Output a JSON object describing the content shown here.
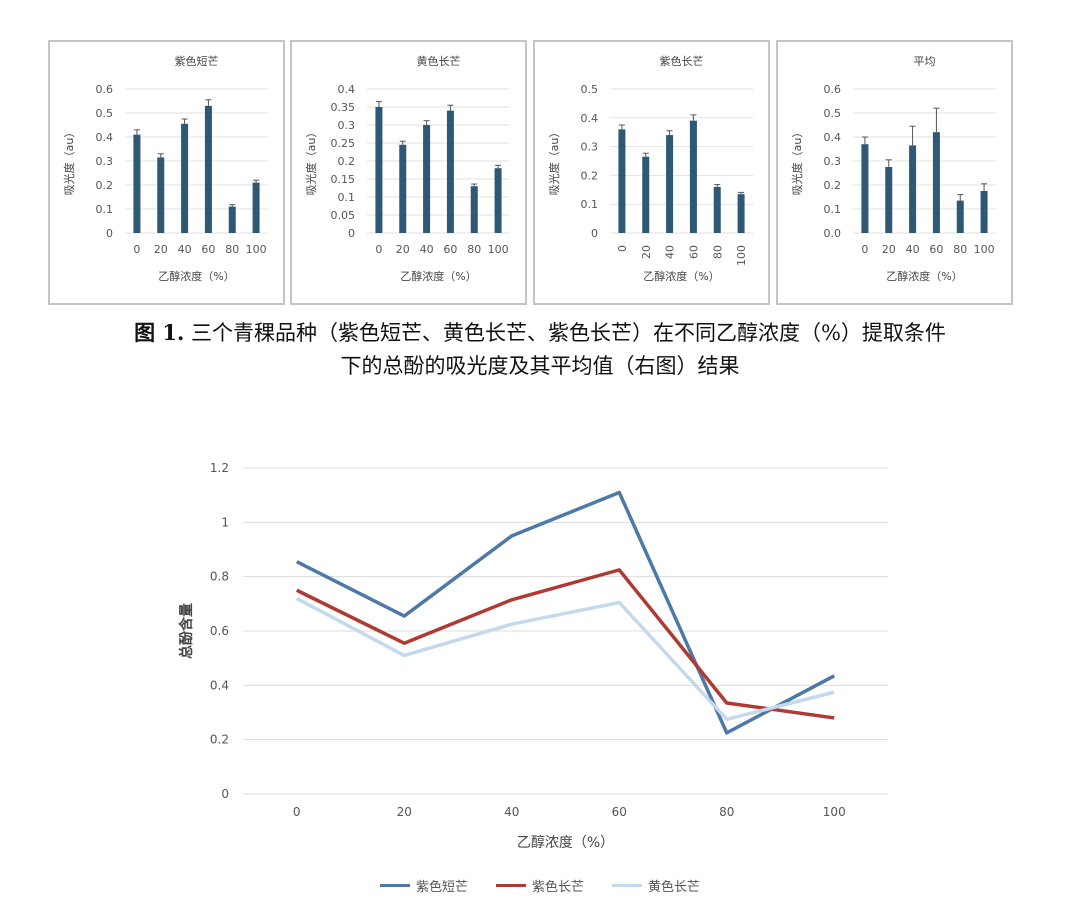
{
  "caption": {
    "label": "图 1.",
    "line1": "三个青稞品种（紫色短芒、黄色长芒、紫色长芒）在不同乙醇浓度（%）提取条件",
    "line2": "下的总酚的吸光度及其平均值（右图）结果"
  },
  "chart_data": [
    {
      "type": "bar",
      "title": "紫色短芒",
      "xlabel": "乙醇浓度（%）",
      "ylabel": "吸光度（au）",
      "categories": [
        "0",
        "20",
        "40",
        "60",
        "80",
        "100"
      ],
      "values": [
        0.41,
        0.315,
        0.455,
        0.53,
        0.11,
        0.21
      ],
      "errors": [
        0.02,
        0.015,
        0.02,
        0.025,
        0.008,
        0.01
      ],
      "ylim": [
        0,
        0.6
      ],
      "yticks": [
        "0",
        "0.1",
        "0.2",
        "0.3",
        "0.4",
        "0.5",
        "0.6"
      ],
      "color": "#2e5873"
    },
    {
      "type": "bar",
      "title": "黄色长芒",
      "xlabel": "乙醇浓度（%）",
      "ylabel": "吸光度（au）",
      "categories": [
        "0",
        "20",
        "40",
        "60",
        "80",
        "100"
      ],
      "values": [
        0.35,
        0.245,
        0.3,
        0.34,
        0.13,
        0.18
      ],
      "errors": [
        0.015,
        0.01,
        0.012,
        0.015,
        0.006,
        0.008
      ],
      "ylim": [
        0,
        0.4
      ],
      "yticks": [
        "0",
        "0.05",
        "0.1",
        "0.15",
        "0.2",
        "0.25",
        "0.3",
        "0.35",
        "0.4"
      ],
      "color": "#2e5873"
    },
    {
      "type": "bar",
      "title": "紫色长芒",
      "xlabel": "乙醇浓度（%）",
      "ylabel": "吸光度（au）",
      "categories": [
        "0",
        "20",
        "40",
        "60",
        "80",
        "100"
      ],
      "values": [
        0.36,
        0.265,
        0.34,
        0.39,
        0.16,
        0.135
      ],
      "errors": [
        0.015,
        0.012,
        0.015,
        0.02,
        0.008,
        0.006
      ],
      "ylim": [
        0,
        0.5
      ],
      "yticks": [
        "0",
        "0.1",
        "0.2",
        "0.3",
        "0.4",
        "0.5"
      ],
      "color": "#2e5873"
    },
    {
      "type": "bar",
      "title": "平均",
      "xlabel": "乙醇浓度（%）",
      "ylabel": "吸光度（au）",
      "categories": [
        "0",
        "20",
        "40",
        "60",
        "80",
        "100"
      ],
      "values": [
        0.37,
        0.275,
        0.365,
        0.42,
        0.135,
        0.175
      ],
      "errors": [
        0.03,
        0.03,
        0.08,
        0.1,
        0.025,
        0.03
      ],
      "ylim": [
        0,
        0.6
      ],
      "yticks": [
        "0.0",
        "0.1",
        "0.2",
        "0.3",
        "0.4",
        "0.5",
        "0.6"
      ],
      "color": "#2e5873"
    },
    {
      "type": "line",
      "title": "",
      "xlabel": "乙醇浓度（%）",
      "ylabel": "总酚含量",
      "categories": [
        "0",
        "20",
        "40",
        "60",
        "80",
        "100"
      ],
      "ylim": [
        0,
        1.2
      ],
      "yticks": [
        "0",
        "0.2",
        "0.4",
        "0.6",
        "0.8",
        "1",
        "1.2"
      ],
      "grid": true,
      "legend": "bottom",
      "series": [
        {
          "name": "紫色短芒",
          "color": "#4e79a7",
          "values": [
            0.855,
            0.655,
            0.95,
            1.11,
            0.225,
            0.435
          ]
        },
        {
          "name": "紫色长芒",
          "color": "#b03a33",
          "values": [
            0.75,
            0.555,
            0.715,
            0.825,
            0.335,
            0.28
          ]
        },
        {
          "name": "黄色长芒",
          "color": "#c5d9ec",
          "values": [
            0.72,
            0.51,
            0.625,
            0.705,
            0.275,
            0.375
          ]
        }
      ]
    }
  ]
}
